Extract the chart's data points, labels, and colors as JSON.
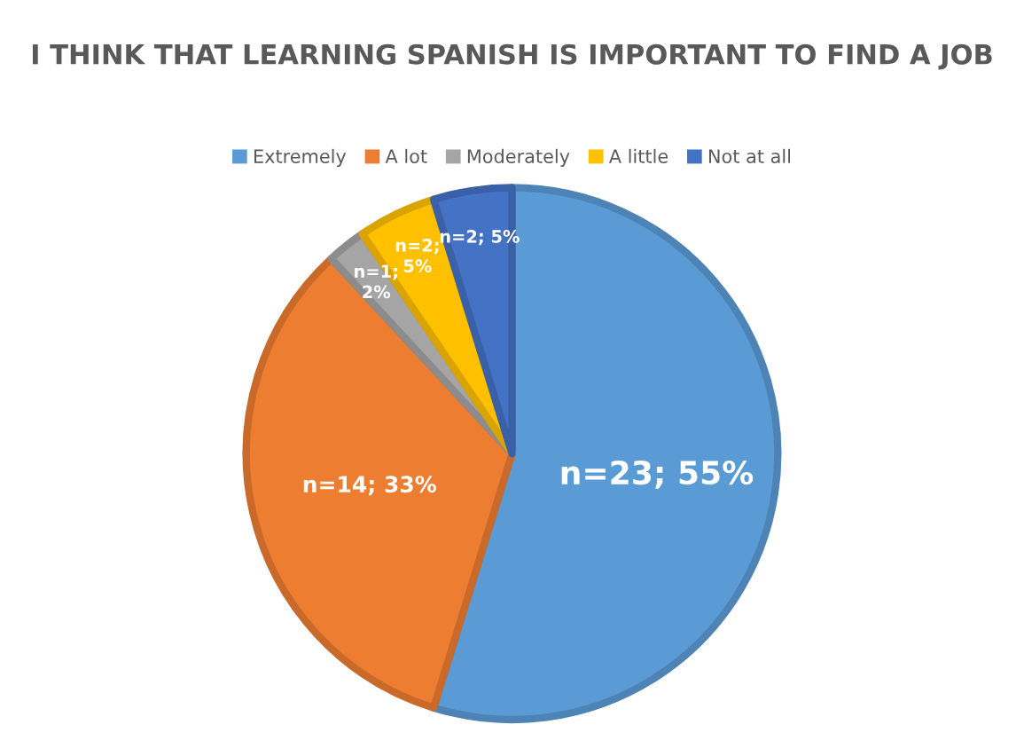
{
  "chart_data": {
    "type": "pie",
    "title": "I THINK THAT LEARNING SPANISH IS IMPORTANT TO FIND A JOB",
    "categories": [
      "Extremely",
      "A lot",
      "Moderately",
      "A little",
      "Not at all"
    ],
    "values": [
      23,
      14,
      1,
      2,
      2
    ],
    "colors": [
      "#5b9bd5",
      "#ed7d31",
      "#a5a5a5",
      "#ffc000",
      "#4472c4"
    ],
    "value_labels": [
      "n=23; 55%",
      "n=14; 33%",
      "n=1;\n2%",
      "n=2;\n5%",
      "n=2; 5%"
    ],
    "legend": "top"
  }
}
